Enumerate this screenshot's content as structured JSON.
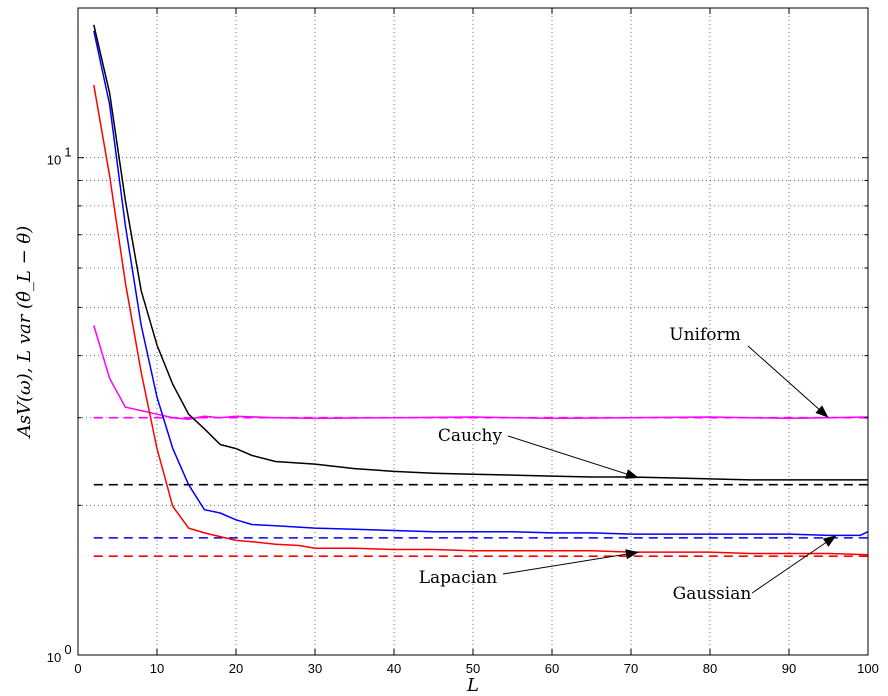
{
  "chart_data": {
    "type": "line",
    "xlabel": "L",
    "ylabel": "AsV(ω), L var (θ̂_L − θ)",
    "xlim": [
      0,
      100
    ],
    "ylim": [
      1,
      20
    ],
    "y_scale": "log",
    "grid": true,
    "x_ticks": [
      0,
      10,
      20,
      30,
      40,
      50,
      60,
      70,
      80,
      90,
      100
    ],
    "y_ticks": [
      {
        "value": 1,
        "label": "10",
        "exp": "0"
      },
      {
        "value": 10,
        "label": "10",
        "exp": "1"
      }
    ],
    "series": [
      {
        "name": "Uniform",
        "color": "#ff00ff",
        "x": [
          2,
          4,
          6,
          8,
          10,
          12,
          14,
          16,
          18,
          20,
          25,
          30,
          40,
          50,
          60,
          70,
          80,
          90,
          100
        ],
        "y": [
          4.6,
          3.6,
          3.15,
          3.1,
          3.05,
          3.0,
          2.98,
          3.02,
          3.0,
          3.02,
          3.0,
          2.99,
          3.0,
          3.01,
          2.99,
          3.0,
          3.01,
          2.99,
          3.01
        ],
        "asymptote": 3.0
      },
      {
        "name": "Cauchy",
        "color": "#000000",
        "x": [
          2,
          4,
          6,
          8,
          10,
          12,
          14,
          16,
          18,
          20,
          22,
          25,
          30,
          35,
          40,
          45,
          50,
          55,
          60,
          65,
          70,
          75,
          80,
          85,
          90,
          95,
          100
        ],
        "y": [
          18.5,
          13.5,
          8.2,
          5.4,
          4.2,
          3.5,
          3.05,
          2.85,
          2.65,
          2.6,
          2.52,
          2.45,
          2.42,
          2.37,
          2.34,
          2.32,
          2.31,
          2.3,
          2.29,
          2.28,
          2.28,
          2.27,
          2.26,
          2.25,
          2.25,
          2.25,
          2.25
        ],
        "asymptote": 2.2
      },
      {
        "name": "Gaussian",
        "color": "#0000ff",
        "x": [
          2,
          4,
          6,
          8,
          10,
          12,
          14,
          16,
          18,
          20,
          22,
          25,
          30,
          35,
          40,
          45,
          50,
          55,
          60,
          65,
          70,
          75,
          80,
          85,
          90,
          95,
          99,
          100
        ],
        "y": [
          18,
          12.8,
          7.3,
          4.6,
          3.3,
          2.6,
          2.2,
          1.96,
          1.93,
          1.87,
          1.83,
          1.82,
          1.8,
          1.79,
          1.78,
          1.77,
          1.77,
          1.77,
          1.76,
          1.76,
          1.75,
          1.75,
          1.75,
          1.75,
          1.75,
          1.74,
          1.74,
          1.77
        ],
        "asymptote": 1.72
      },
      {
        "name": "Lapacian",
        "color": "#ff0000",
        "x": [
          2,
          4,
          6,
          8,
          10,
          12,
          14,
          16,
          18,
          20,
          22,
          25,
          28,
          30,
          35,
          40,
          45,
          50,
          55,
          60,
          65,
          70,
          75,
          80,
          85,
          90,
          95,
          100
        ],
        "y": [
          14,
          9.2,
          5.6,
          3.7,
          2.6,
          1.99,
          1.8,
          1.76,
          1.73,
          1.7,
          1.69,
          1.67,
          1.66,
          1.64,
          1.64,
          1.63,
          1.63,
          1.62,
          1.62,
          1.62,
          1.62,
          1.61,
          1.61,
          1.61,
          1.6,
          1.6,
          1.6,
          1.59
        ],
        "asymptote": 1.58
      }
    ],
    "annotations": [
      {
        "text": "Uniform",
        "point_x": 95,
        "point_y": 3.0
      },
      {
        "text": "Cauchy",
        "point_x": 71,
        "point_y": 2.27
      },
      {
        "text": "Lapacian",
        "point_x": 71,
        "point_y": 1.61
      },
      {
        "text": "Gaussian",
        "point_x": 96,
        "point_y": 1.74
      }
    ]
  }
}
